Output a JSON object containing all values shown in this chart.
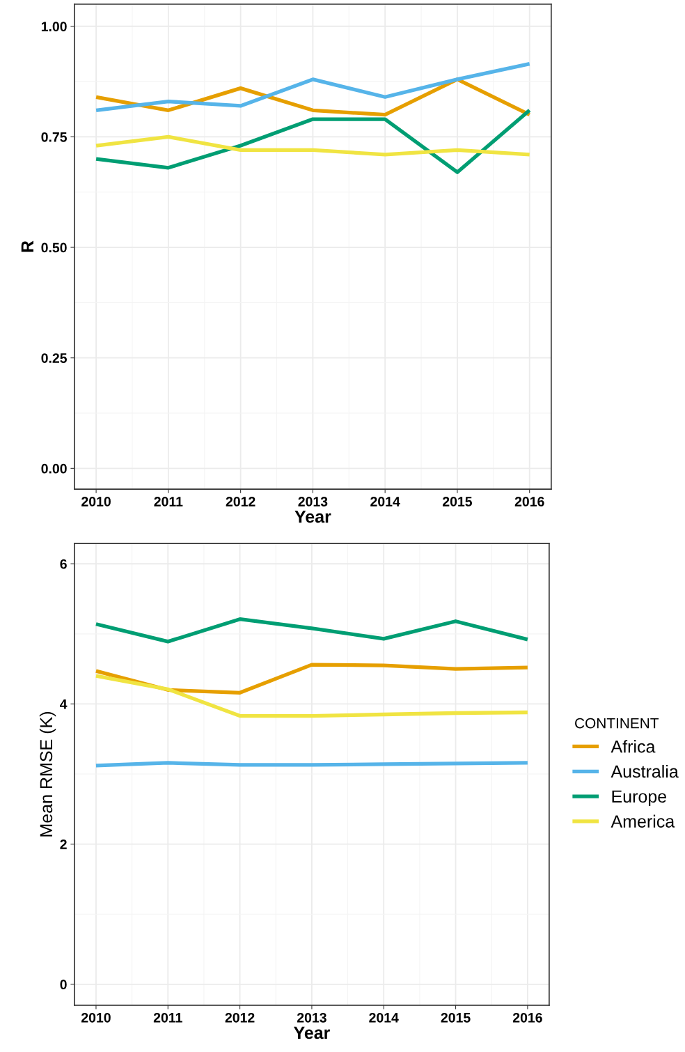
{
  "chart_data": [
    {
      "type": "line",
      "xlabel": "Year",
      "ylabel": "R",
      "x": [
        2010,
        2011,
        2012,
        2013,
        2014,
        2015,
        2016
      ],
      "xlim": [
        2009.7,
        2016.3
      ],
      "xticks": [
        2010,
        2011,
        2012,
        2013,
        2014,
        2015,
        2016
      ],
      "ylim": [
        -0.047,
        1.05
      ],
      "yticks": [
        {
          "value": 0,
          "label": "0.00"
        },
        {
          "value": 0.25,
          "label": "0.25"
        },
        {
          "value": 0.5,
          "label": "0.50"
        },
        {
          "value": 0.75,
          "label": "0.75"
        },
        {
          "value": 1,
          "label": "1.00"
        }
      ],
      "grid": true,
      "marker": "none",
      "line_style": "solid",
      "series": [
        {
          "color": "#e69f00",
          "values": [
            0.84,
            0.81,
            0.86,
            0.81,
            0.8,
            0.88,
            0.8
          ]
        },
        {
          "color": "#56b4e9",
          "values": [
            0.81,
            0.83,
            0.82,
            0.88,
            0.84,
            0.88,
            0.915
          ]
        },
        {
          "color": "#009e73",
          "values": [
            0.7,
            0.68,
            0.73,
            0.79,
            0.79,
            0.67,
            0.81
          ]
        },
        {
          "color": "#f0e442",
          "values": [
            0.73,
            0.75,
            0.72,
            0.72,
            0.71,
            0.72,
            0.71
          ]
        }
      ]
    },
    {
      "type": "line",
      "xlabel": "Year",
      "ylabel": "Mean RMSE (K)",
      "legend_title": "CONTINENT",
      "x": [
        2010,
        2011,
        2012,
        2013,
        2014,
        2015,
        2016
      ],
      "xlim": [
        2009.7,
        2016.3
      ],
      "xticks": [
        2010,
        2011,
        2012,
        2013,
        2014,
        2015,
        2016
      ],
      "ylim": [
        -0.3,
        6.29
      ],
      "yticks": [
        0,
        2,
        4,
        6
      ],
      "grid": true,
      "legend": "right",
      "marker": "none",
      "line_style": "solid",
      "series": [
        {
          "name": "Africa",
          "color": "#e69f00",
          "values": [
            4.47,
            4.2,
            4.16,
            4.56,
            4.55,
            4.5,
            4.52
          ]
        },
        {
          "name": "Australia",
          "color": "#56b4e9",
          "values": [
            3.12,
            3.16,
            3.13,
            3.13,
            3.14,
            3.15,
            3.16
          ]
        },
        {
          "name": "Europe",
          "color": "#009e73",
          "values": [
            5.14,
            4.89,
            5.21,
            5.08,
            4.93,
            5.18,
            4.92
          ]
        },
        {
          "name": "America",
          "color": "#f0e442",
          "values": [
            4.4,
            4.21,
            3.83,
            3.83,
            3.85,
            3.87,
            3.88
          ]
        }
      ]
    }
  ]
}
